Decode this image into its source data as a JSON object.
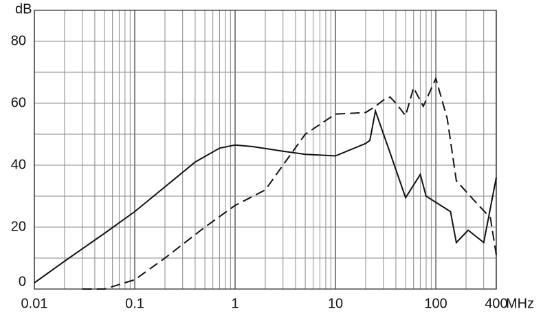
{
  "chart_data": {
    "type": "line",
    "x_label": "MHz",
    "y_label": "dB",
    "log_x": true,
    "grid": true,
    "xlim": [
      0.01,
      400
    ],
    "xticks": [
      0.01,
      0.1,
      1,
      10,
      100,
      400
    ],
    "ylim": [
      0,
      90
    ],
    "yticks": [
      0,
      20,
      40,
      60,
      80
    ],
    "series": [
      {
        "color": "#111111",
        "line_style": "solid",
        "x": [
          0.01,
          0.02,
          0.05,
          0.1,
          0.2,
          0.4,
          0.7,
          1,
          1.5,
          3,
          5,
          10,
          20,
          22,
          25,
          35,
          50,
          70,
          80,
          100,
          140,
          160,
          210,
          300,
          400
        ],
        "values": [
          2,
          9,
          18,
          25,
          33,
          41,
          45.5,
          46.5,
          46,
          44.5,
          43.5,
          43,
          47,
          48,
          57.5,
          44,
          29.5,
          37,
          30,
          28,
          25,
          15,
          19,
          15,
          36
        ]
      },
      {
        "color": "#111111",
        "line_style": "dashed",
        "x": [
          0.03,
          0.05,
          0.1,
          0.2,
          0.5,
          1,
          2,
          3,
          5,
          10,
          20,
          25,
          30,
          35,
          40,
          50,
          60,
          75,
          100,
          130,
          160,
          250,
          350,
          400
        ],
        "values": [
          0,
          0,
          3,
          10,
          20,
          27,
          32,
          40,
          50,
          56.5,
          57,
          59,
          61,
          62,
          60,
          56,
          65,
          59,
          68,
          55,
          35,
          28,
          23,
          11
        ]
      }
    ]
  }
}
